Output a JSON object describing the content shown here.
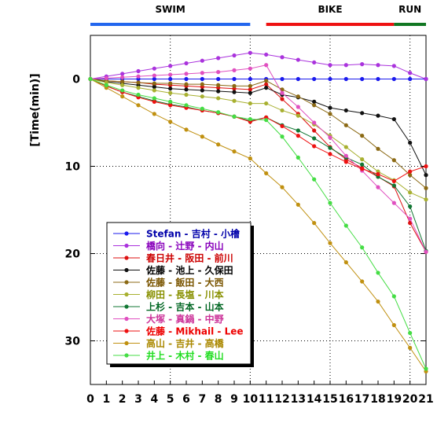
{
  "chart_data": {
    "type": "line",
    "ylabel": "[Time(min)]",
    "xlim": [
      0,
      21
    ],
    "ylim": [
      -5,
      35
    ],
    "y_inverted": true,
    "grid": true,
    "legend_position": "bottom-left",
    "x_ticks": [
      0,
      1,
      2,
      3,
      4,
      5,
      6,
      7,
      8,
      9,
      10,
      11,
      12,
      13,
      14,
      15,
      16,
      17,
      18,
      19,
      20,
      21
    ],
    "y_ticks": [
      0,
      10,
      20,
      30
    ],
    "segments": [
      {
        "label": "SWIM",
        "x_start": 0,
        "x_end": 10,
        "color": "#2266ee"
      },
      {
        "label": "BIKE",
        "x_start": 11,
        "x_end": 19,
        "color": "#ee1111"
      },
      {
        "label": "RUN",
        "x_start": 19,
        "x_end": 21,
        "color": "#117722"
      }
    ],
    "x": [
      0,
      1,
      2,
      3,
      4,
      5,
      6,
      7,
      8,
      9,
      10,
      11,
      12,
      13,
      14,
      15,
      16,
      17,
      18,
      19,
      20,
      21
    ],
    "series": [
      {
        "name": "Stefan - 吉村 - 小檜",
        "color": "#1a1aee",
        "legend_color": "#0000aa",
        "values": [
          0,
          0,
          0,
          0,
          0,
          0,
          0,
          0,
          0,
          0,
          0,
          0,
          0,
          0,
          0,
          0,
          0,
          0,
          0,
          0,
          0,
          0
        ]
      },
      {
        "name": "橋向 - 辻野 - 内山",
        "color": "#aa33dd",
        "legend_color": "#8800bb",
        "values": [
          0,
          -0.3,
          -0.6,
          -0.9,
          -1.2,
          -1.5,
          -1.8,
          -2.1,
          -2.4,
          -2.7,
          -3.0,
          -2.8,
          -2.5,
          -2.2,
          -1.9,
          -1.6,
          -1.6,
          -1.7,
          -1.6,
          -1.5,
          -0.7,
          0
        ]
      },
      {
        "name": "春日井 - 阪田 - 前川",
        "color": "#dd1111",
        "legend_color": "#cc0000",
        "values": [
          0,
          0.2,
          0.3,
          0.4,
          0.6,
          0.7,
          0.8,
          0.9,
          1.0,
          1.1,
          1.2,
          0.6,
          2.3,
          4.0,
          5.9,
          7.8,
          9.2,
          10.2,
          11.2,
          12.3,
          16.5,
          19.8
        ]
      },
      {
        "name": "佐藤 - 池上 - 久保田",
        "color": "#111111",
        "legend_color": "#000000",
        "values": [
          0,
          0.3,
          0.5,
          0.7,
          0.9,
          1.1,
          1.2,
          1.3,
          1.4,
          1.5,
          1.6,
          1.0,
          1.8,
          2.1,
          2.6,
          3.3,
          3.6,
          3.9,
          4.2,
          4.6,
          7.3,
          11.0
        ]
      },
      {
        "name": "佐藤 - 飯田 - 大西",
        "color": "#8b6914",
        "legend_color": "#7a5500",
        "values": [
          0,
          0.2,
          0.3,
          0.4,
          0.5,
          0.5,
          0.6,
          0.6,
          0.7,
          0.8,
          0.8,
          0.2,
          1.2,
          2.0,
          3.0,
          4.0,
          5.3,
          6.5,
          8.0,
          9.3,
          11.0,
          12.5
        ]
      },
      {
        "name": "柳田 - 長塩 - 川本",
        "color": "#a8b030",
        "legend_color": "#889000",
        "values": [
          0,
          0.4,
          0.7,
          1.0,
          1.3,
          1.6,
          1.8,
          2.0,
          2.2,
          2.5,
          2.8,
          2.8,
          3.6,
          4.2,
          5.2,
          6.5,
          7.8,
          9.2,
          10.6,
          11.6,
          13.0,
          13.8
        ]
      },
      {
        "name": "上杉 - 吉本 - 山本",
        "color": "#117733",
        "legend_color": "#006622",
        "values": [
          0,
          0.8,
          1.5,
          2.0,
          2.5,
          2.9,
          3.2,
          3.6,
          3.9,
          4.3,
          4.8,
          4.4,
          5.3,
          5.9,
          6.8,
          7.9,
          9.0,
          9.8,
          11.2,
          12.2,
          14.6,
          19.7
        ]
      },
      {
        "name": "大塚 - 真鍋 - 中野",
        "color": "#e050c0",
        "legend_color": "#cc3399",
        "values": [
          0,
          -0.1,
          -0.2,
          -0.3,
          -0.4,
          -0.5,
          -0.6,
          -0.7,
          -0.8,
          -1.0,
          -1.2,
          -1.6,
          1.6,
          3.2,
          5.0,
          6.7,
          8.8,
          10.5,
          12.4,
          14.2,
          16.0,
          19.8
        ]
      },
      {
        "name": "佐藤 - Mikhail - Lee",
        "color": "#ee1111",
        "legend_color": "#ee0000",
        "values": [
          0,
          0.8,
          1.5,
          2.1,
          2.6,
          3.0,
          3.3,
          3.6,
          3.9,
          4.3,
          4.9,
          4.4,
          5.4,
          6.5,
          7.7,
          8.6,
          9.5,
          10.3,
          10.9,
          11.7,
          10.6,
          10.0
        ]
      },
      {
        "name": "高山 - 吉井 - 高橋",
        "color": "#c09010",
        "legend_color": "#aa8800",
        "values": [
          0,
          1.0,
          2.0,
          3.0,
          4.0,
          4.9,
          5.8,
          6.6,
          7.5,
          8.3,
          9.1,
          10.8,
          12.4,
          14.4,
          16.5,
          18.8,
          21.0,
          23.2,
          25.5,
          28.2,
          30.8,
          33.5
        ]
      },
      {
        "name": "井上 - 木村 - 春山",
        "color": "#44dd44",
        "legend_color": "#22dd22",
        "values": [
          0,
          0.7,
          1.3,
          1.8,
          2.2,
          2.6,
          3.0,
          3.4,
          3.8,
          4.3,
          4.6,
          4.7,
          6.6,
          9.0,
          11.5,
          14.2,
          16.8,
          19.3,
          22.2,
          24.9,
          29.1,
          33.2
        ]
      }
    ]
  }
}
